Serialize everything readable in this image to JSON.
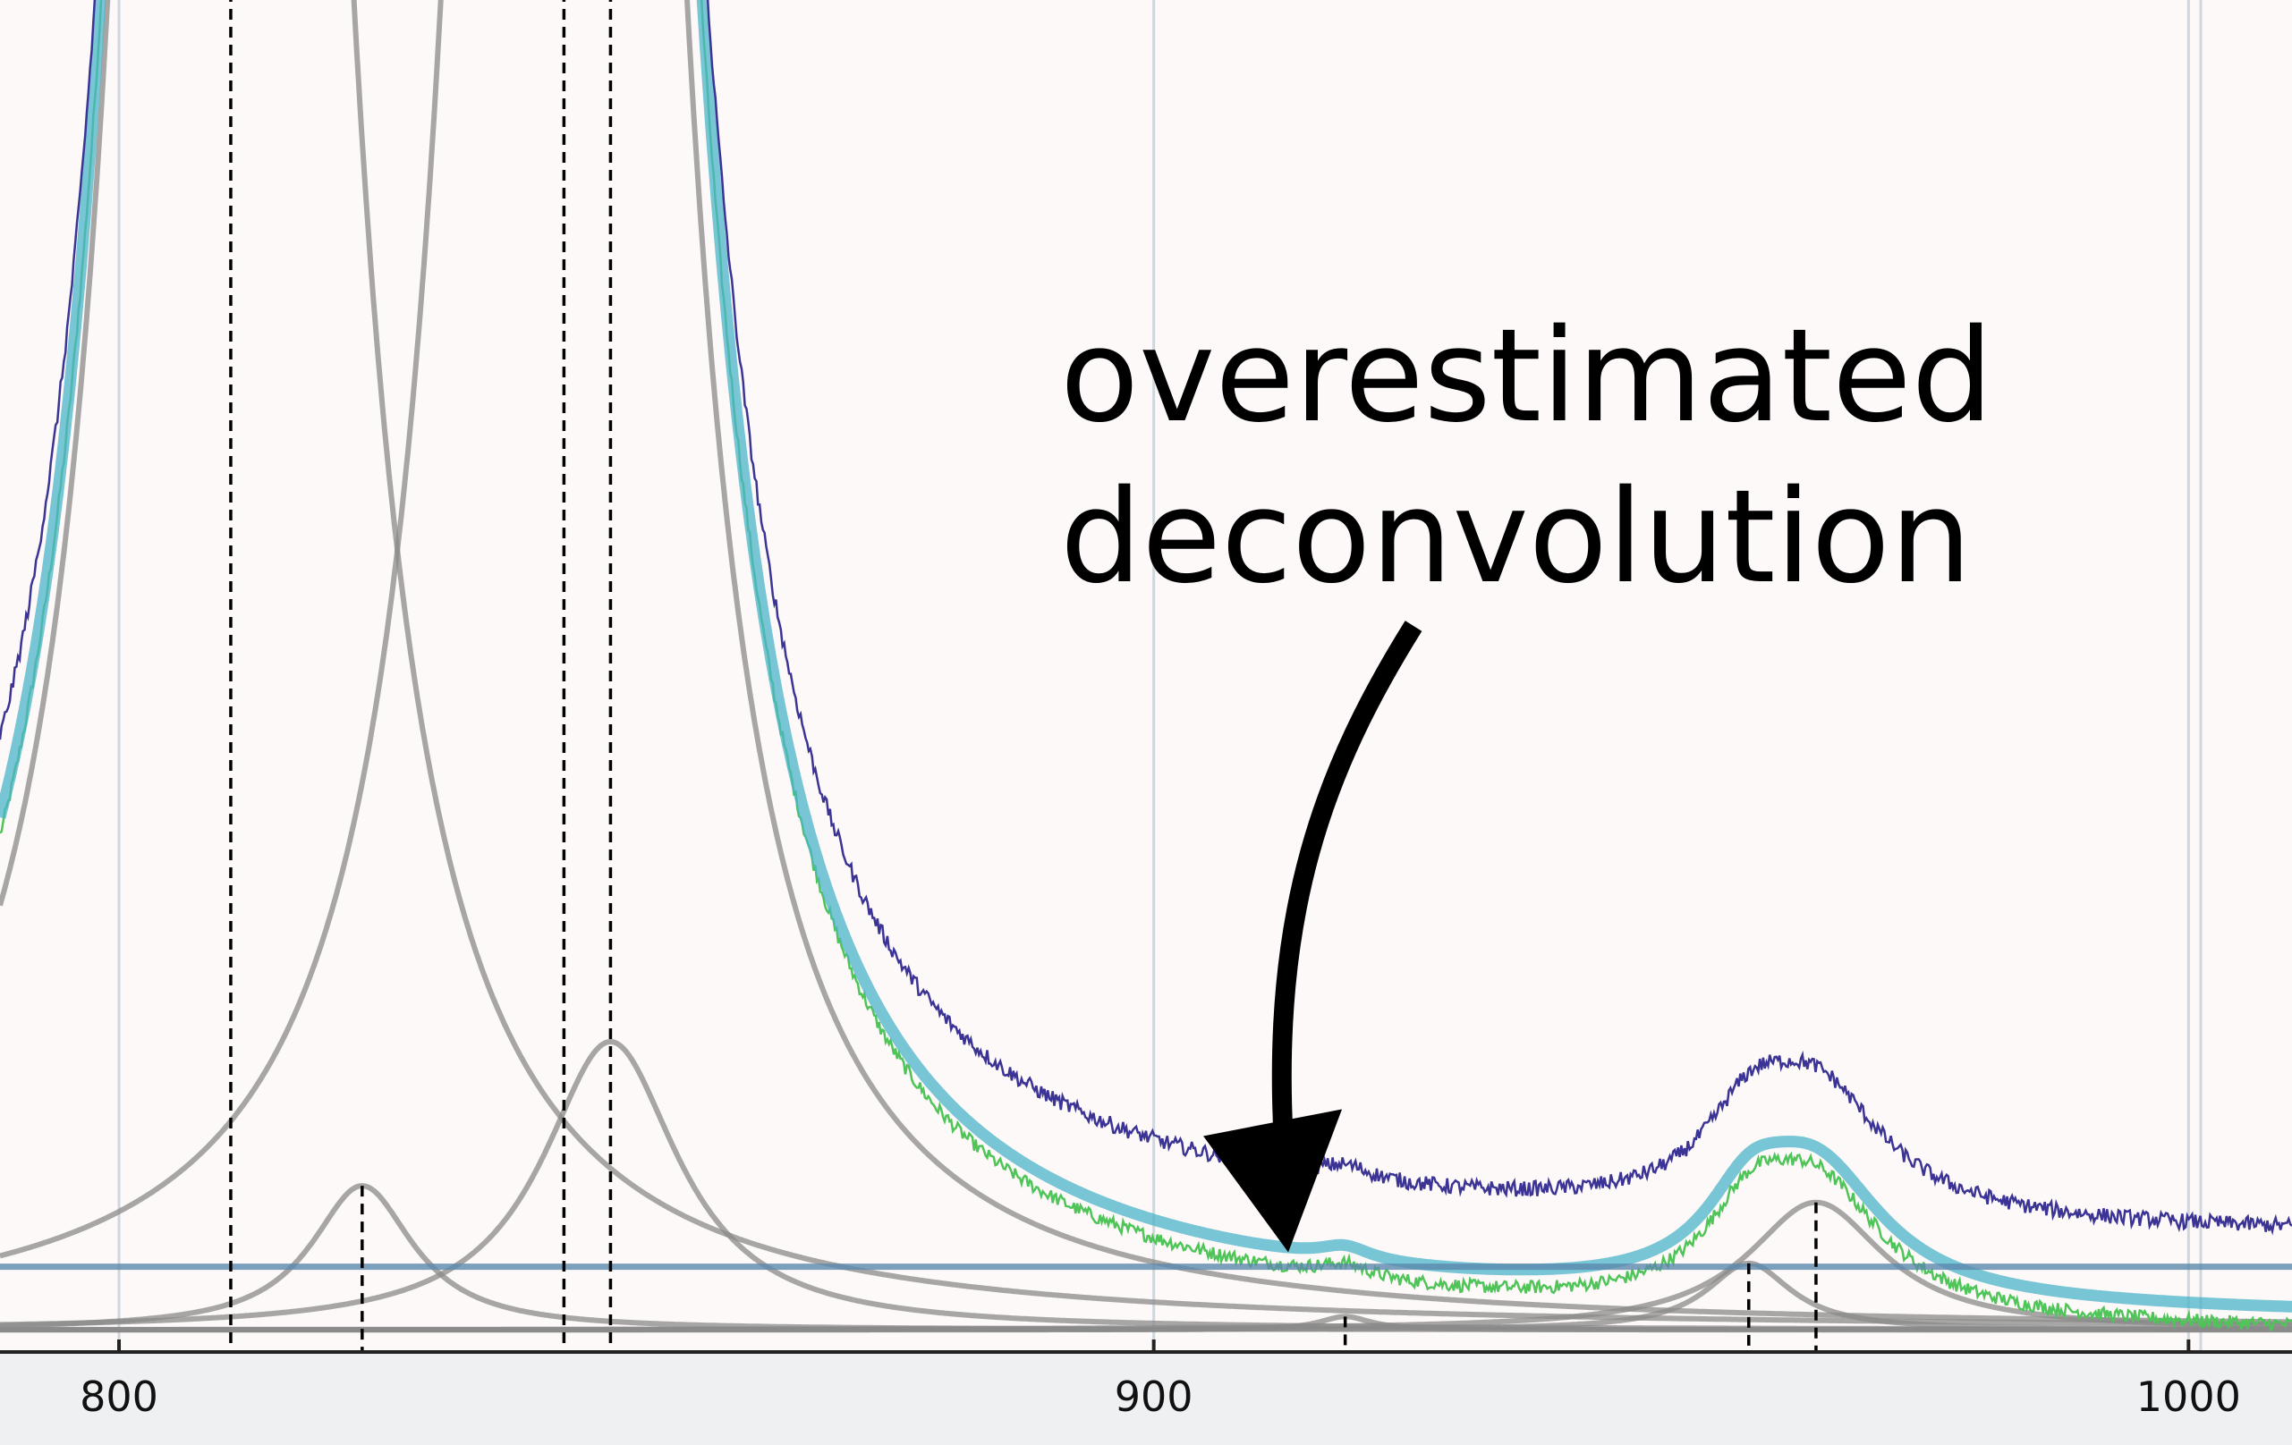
{
  "chart_data": {
    "type": "line",
    "title": "",
    "xlabel": "",
    "ylabel": "",
    "xlim": [
      788.5,
      1010
    ],
    "ylim": [
      -0.02,
      1.2
    ],
    "x_ticks": [
      800,
      900,
      1000
    ],
    "x_tick_labels": [
      "800",
      "900",
      "1000"
    ],
    "grid": "vertical",
    "colors": {
      "background": "#fdf9f8",
      "axis_strip": "#eef0f2",
      "grid": "#cfd6dc",
      "raw_spectrum": "#3b3495",
      "corrected_spectrum": "#4fc458",
      "total_fit": "#4ab3c9",
      "components": "#8a8a8a",
      "baseline": "#5b88ad",
      "peak_markers": "#000000"
    },
    "annotation": {
      "lines": [
        "overestimated",
        "deconvolution"
      ],
      "arrow_tip": {
        "x": 913,
        "y": 0.07
      }
    },
    "baseline_level": 0.057,
    "components": [
      {
        "center": 810.8,
        "height": 8.0,
        "width": 5.0
      },
      {
        "center": 823.5,
        "height": 0.13,
        "width": 6.0
      },
      {
        "center": 843.0,
        "height": 8.0,
        "width": 5.0
      },
      {
        "center": 847.5,
        "height": 0.26,
        "width": 8.0
      },
      {
        "center": 918.5,
        "height": 0.012,
        "width": 3.0
      },
      {
        "center": 957.5,
        "height": 0.06,
        "width": 5.0
      },
      {
        "center": 964.0,
        "height": 0.115,
        "width": 8.0
      }
    ],
    "peak_markers_x": [
      810.8,
      823.5,
      843.0,
      847.5,
      918.5,
      957.5,
      964.0
    ]
  }
}
